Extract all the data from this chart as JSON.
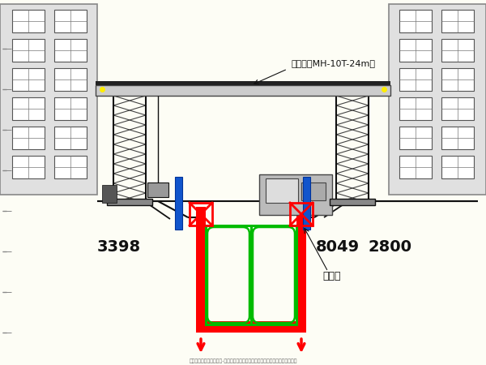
{
  "bg_color": "#FDFDF5",
  "title_bottom": "地铁工程深基坑资料下载-轨道交通明挖区间深基坑开挖及支护安全专项施工方案",
  "crane_label": "龙门吊（MH-10T-24m）",
  "label_3398": "3398",
  "label_8049": "8049",
  "label_2800": "2800",
  "label_weihuzhuang": "围护桩",
  "red_color": "#FF0000",
  "green_color": "#00BB00",
  "black_color": "#111111",
  "blue_color": "#1155CC",
  "yellow_color": "#FFEE00",
  "bld_color": "#E0E0E0",
  "win_color": "#FFFFFF"
}
